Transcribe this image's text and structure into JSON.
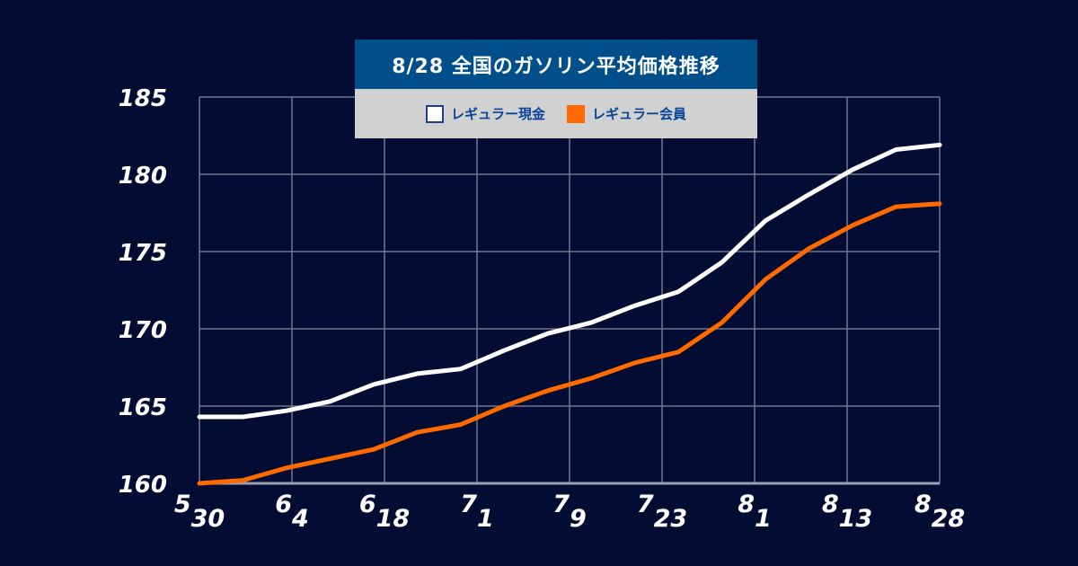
{
  "chart_data": {
    "type": "line",
    "title": "8/28 全国のガソリン平均価格推移",
    "ylim": [
      160,
      185
    ],
    "yticks": [
      "160",
      "165",
      "170",
      "175",
      "180",
      "185"
    ],
    "x_ticks": [
      {
        "main": "5",
        "sub": "30"
      },
      {
        "main": "6",
        "sub": "4"
      },
      {
        "main": "6",
        "sub": "18"
      },
      {
        "main": "7",
        "sub": "1"
      },
      {
        "main": "7",
        "sub": "9"
      },
      {
        "main": "7",
        "sub": "23"
      },
      {
        "main": "8",
        "sub": "1"
      },
      {
        "main": "8",
        "sub": "13"
      },
      {
        "main": "8",
        "sub": "28"
      }
    ],
    "grid": true,
    "legend_position": "top-center",
    "series": [
      {
        "name": "レギュラー現金",
        "color": "#ffffff",
        "values": [
          164.3,
          164.3,
          164.7,
          165.3,
          166.4,
          167.1,
          167.4,
          168.6,
          169.7,
          170.4,
          171.5,
          172.4,
          174.3,
          177.0,
          178.7,
          180.3,
          181.6,
          181.9
        ]
      },
      {
        "name": "レギュラー会員",
        "color": "#ff6a00",
        "values": [
          160.0,
          160.2,
          161.0,
          161.6,
          162.2,
          163.3,
          163.8,
          165.0,
          166.0,
          166.8,
          167.8,
          168.5,
          170.4,
          173.2,
          175.2,
          176.7,
          177.9,
          178.1
        ]
      }
    ]
  }
}
